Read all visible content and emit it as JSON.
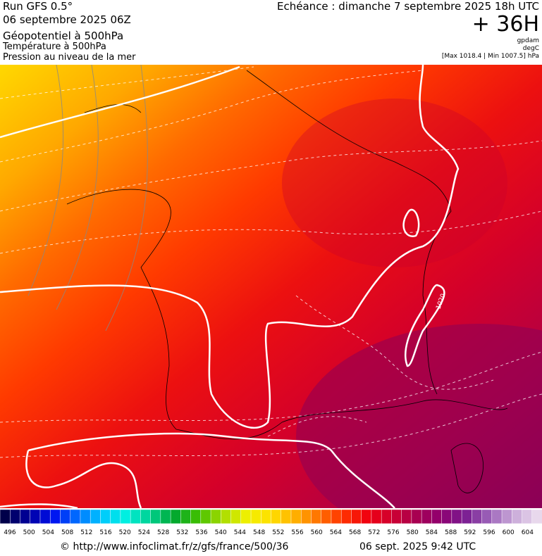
{
  "header": {
    "run": "Run GFS 0.5°",
    "date": "06 septembre 2025 06Z",
    "field1": "Géopotentiel à 500hPa",
    "field2": "Température à 500hPa",
    "field3": "Pression au niveau de la mer",
    "echeance": "Echéance : dimanche 7 septembre 2025 18h UTC",
    "lead": "+ 36H",
    "unit1": "gpdam",
    "unit2": "degC",
    "range": "[Max 1018.4 | Min 1007.5] hPa"
  },
  "map": {
    "contour_label": "1020"
  },
  "colorbar": {
    "labels": [
      496,
      500,
      504,
      508,
      512,
      516,
      520,
      524,
      528,
      532,
      536,
      540,
      544,
      548,
      552,
      556,
      560,
      564,
      568,
      572,
      576,
      580,
      584,
      588,
      592,
      596,
      600,
      604
    ],
    "colors": [
      "#00004a",
      "#0000a0",
      "#0010f0",
      "#0070ff",
      "#00c8ff",
      "#00f0e0",
      "#00d090",
      "#00a830",
      "#40c000",
      "#a8dc00",
      "#f0f000",
      "#ffe000",
      "#ffb000",
      "#ff7000",
      "#ff3000",
      "#f00010",
      "#d00030",
      "#a80050",
      "#900070",
      "#7a1a90",
      "#9a60b8",
      "#c8a8d8",
      "#e8d8ec"
    ]
  },
  "footer": {
    "url": "© http://www.infoclimat.fr/z/gfs/france/500/36",
    "timestamp": "06 sept. 2025  9:42 UTC"
  }
}
